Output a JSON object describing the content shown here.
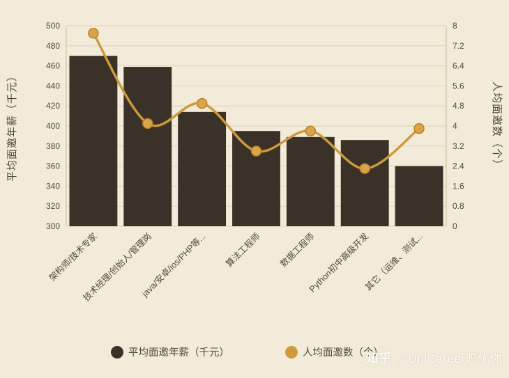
{
  "watermark": {
    "logo": "知乎",
    "handle": "@UniCareer职优你"
  },
  "colors": {
    "background": "#f3ebd9",
    "bar": "#3a3128",
    "line": "#cf9a3d",
    "marker_fill": "#d9a54b",
    "marker_stroke": "#b98223",
    "grid": "#ded0b9",
    "axis_line": "#c9b99d",
    "text": "#55483a",
    "watermark": "rgba(255,255,255,0.93)"
  },
  "chart_data": {
    "type": "bar+line",
    "categories": [
      "架构师/技术专家",
      "技术经理/创始人/管理岗",
      "java/安卓/ios/PHP等...",
      "算法工程师",
      "数据工程师",
      "Python初中高级开发",
      "其它（运维、测试..."
    ],
    "series": [
      {
        "name": "平均面邀年薪（千元）",
        "type": "bar",
        "axis": "left",
        "values": [
          470,
          459,
          414,
          395,
          389,
          386,
          360
        ]
      },
      {
        "name": "人均面邀数（个）",
        "type": "line",
        "axis": "right",
        "values": [
          7.7,
          4.1,
          4.9,
          3.0,
          3.8,
          2.3,
          3.9
        ]
      }
    ],
    "left_axis": {
      "title": "平均面邀年薪（千元）",
      "min": 300,
      "max": 500,
      "ticks": [
        "500",
        "480",
        "460",
        "440",
        "420",
        "400",
        "380",
        "360",
        "340",
        "320",
        "300"
      ]
    },
    "right_axis": {
      "title": "人均面邀数（个）",
      "min": 0,
      "max": 8,
      "ticks": [
        "8",
        "7.2",
        "6.4",
        "5.6",
        "4.8",
        "4",
        "3.2",
        "2.4",
        "1.6",
        "0.8",
        "0"
      ]
    },
    "grid": true,
    "legend_position": "bottom",
    "legend": [
      "平均面邀年薪（千元）",
      "人均面邀数（个）"
    ]
  }
}
